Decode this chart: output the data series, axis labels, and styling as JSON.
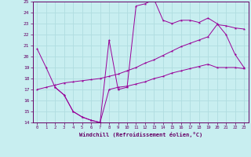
{
  "title": "",
  "xlabel": "Windchill (Refroidissement éolien,°C)",
  "ylabel": "",
  "background_color": "#c8eef0",
  "grid_color": "#b0dde0",
  "line_color": "#990099",
  "ylim": [
    14,
    25
  ],
  "xlim": [
    -0.5,
    23.5
  ],
  "yticks": [
    14,
    15,
    16,
    17,
    18,
    19,
    20,
    21,
    22,
    23,
    24,
    25
  ],
  "xticks": [
    0,
    1,
    2,
    3,
    4,
    5,
    6,
    7,
    8,
    9,
    10,
    11,
    12,
    13,
    14,
    15,
    16,
    17,
    18,
    19,
    20,
    21,
    22,
    23
  ],
  "line1_x": [
    0,
    1,
    2,
    3,
    4,
    5,
    6,
    7,
    8,
    9,
    10,
    11,
    12,
    13,
    14,
    15,
    16,
    17,
    18,
    19,
    20,
    21,
    22,
    23
  ],
  "line1_y": [
    20.7,
    19.0,
    17.2,
    16.5,
    15.0,
    14.5,
    14.2,
    14.0,
    21.5,
    17.0,
    17.2,
    24.6,
    24.8,
    25.2,
    23.3,
    23.0,
    23.3,
    23.3,
    23.1,
    23.5,
    23.0,
    22.0,
    20.2,
    19.0
  ],
  "line2_x": [
    0,
    1,
    2,
    3,
    4,
    5,
    6,
    7,
    8,
    9,
    10,
    11,
    12,
    13,
    14,
    15,
    16,
    17,
    18,
    19,
    20,
    21,
    22,
    23
  ],
  "line2_y": [
    17.0,
    17.2,
    17.4,
    17.6,
    17.7,
    17.8,
    17.9,
    18.0,
    18.2,
    18.4,
    18.7,
    19.0,
    19.4,
    19.7,
    20.1,
    20.5,
    20.9,
    21.2,
    21.5,
    21.8,
    22.9,
    22.8,
    22.6,
    22.5
  ],
  "line3_x": [
    2,
    3,
    4,
    5,
    6,
    7,
    8,
    9,
    10,
    11,
    12,
    13,
    14,
    15,
    16,
    17,
    18,
    19,
    20,
    21,
    22,
    23
  ],
  "line3_y": [
    17.2,
    16.5,
    15.0,
    14.5,
    14.2,
    14.0,
    17.0,
    17.2,
    17.3,
    17.5,
    17.7,
    18.0,
    18.2,
    18.5,
    18.7,
    18.9,
    19.1,
    19.3,
    19.0,
    19.0,
    19.0,
    18.9
  ]
}
